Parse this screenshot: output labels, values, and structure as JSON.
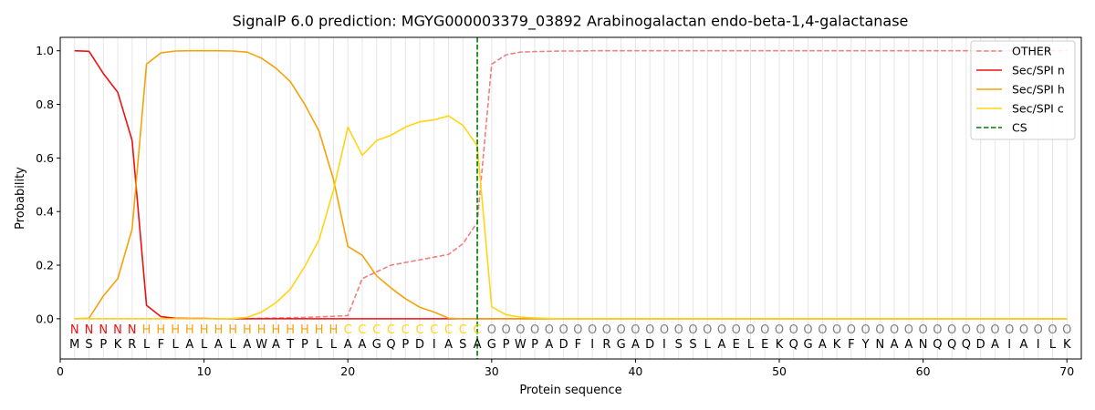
{
  "chart_data": {
    "type": "line",
    "title": "SignalP 6.0 prediction: MGYG000003379_03892 Arabinogalactan endo-beta-1,4-galactanase",
    "xlabel": "Protein sequence",
    "ylabel": "Probability",
    "xlim": [
      0,
      71
    ],
    "ylim": [
      -0.15,
      1.05
    ],
    "xticks": [
      0,
      10,
      20,
      30,
      40,
      50,
      60,
      70
    ],
    "yticks": [
      0.0,
      0.2,
      0.4,
      0.6,
      0.8,
      1.0
    ],
    "ytick_labels": [
      "0.0",
      "0.2",
      "0.4",
      "0.6",
      "0.8",
      "1.0"
    ],
    "grid": "vertical lines at each residue position",
    "legend_position": "top-right",
    "x": [
      1,
      2,
      3,
      4,
      5,
      6,
      7,
      8,
      9,
      10,
      11,
      12,
      13,
      14,
      15,
      16,
      17,
      18,
      19,
      20,
      21,
      22,
      23,
      24,
      25,
      26,
      27,
      28,
      29,
      30,
      31,
      32,
      33,
      34,
      35,
      36,
      37,
      38,
      39,
      40,
      41,
      42,
      43,
      44,
      45,
      46,
      47,
      48,
      49,
      50,
      51,
      52,
      53,
      54,
      55,
      56,
      57,
      58,
      59,
      60,
      61,
      62,
      63,
      64,
      65,
      66,
      67,
      68,
      69,
      70
    ],
    "series": [
      {
        "name": "OTHER",
        "color": "#f08080",
        "dashed": true,
        "values": [
          0,
          0,
          0,
          0,
          0,
          0,
          0,
          0,
          0,
          0,
          0,
          0,
          0,
          0.002,
          0.003,
          0.004,
          0.005,
          0.007,
          0.009,
          0.012,
          0.15,
          0.175,
          0.2,
          0.21,
          0.22,
          0.23,
          0.24,
          0.28,
          0.36,
          0.95,
          0.985,
          0.995,
          0.997,
          0.998,
          0.999,
          0.999,
          1,
          1,
          1,
          1,
          1,
          1,
          1,
          1,
          1,
          1,
          1,
          1,
          1,
          1,
          1,
          1,
          1,
          1,
          1,
          1,
          1,
          1,
          1,
          1,
          1,
          1,
          1,
          1,
          1,
          1,
          1,
          1,
          1,
          1
        ]
      },
      {
        "name": "Sec/SPI n",
        "color": "#ee1111",
        "dashed": false,
        "values": [
          1.0,
          0.998,
          0.915,
          0.845,
          0.665,
          0.05,
          0.008,
          0.002,
          0.001,
          0.001,
          0,
          0,
          0,
          0,
          0,
          0,
          0,
          0,
          0,
          0,
          0,
          0,
          0,
          0,
          0,
          0,
          0,
          0,
          0,
          0,
          0,
          0,
          0,
          0,
          0,
          0,
          0,
          0,
          0,
          0,
          0,
          0,
          0,
          0,
          0,
          0,
          0,
          0,
          0,
          0,
          0,
          0,
          0,
          0,
          0,
          0,
          0,
          0,
          0,
          0,
          0,
          0,
          0,
          0,
          0,
          0,
          0,
          0,
          0,
          0
        ]
      },
      {
        "name": "Sec/SPI h",
        "color": "#f5a20a",
        "dashed": false,
        "values": [
          0,
          0.002,
          0.085,
          0.15,
          0.335,
          0.95,
          0.992,
          0.999,
          1.0,
          1.0,
          1.0,
          0.999,
          0.995,
          0.972,
          0.935,
          0.885,
          0.8,
          0.7,
          0.52,
          0.27,
          0.237,
          0.16,
          0.115,
          0.075,
          0.043,
          0.025,
          0.002,
          0,
          0,
          0,
          0,
          0,
          0,
          0,
          0,
          0,
          0,
          0,
          0,
          0,
          0,
          0,
          0,
          0,
          0,
          0,
          0,
          0,
          0,
          0,
          0,
          0,
          0,
          0,
          0,
          0,
          0,
          0,
          0,
          0,
          0,
          0,
          0,
          0,
          0,
          0,
          0,
          0,
          0,
          0
        ]
      },
      {
        "name": "Sec/SPI c",
        "color": "#ffd514",
        "dashed": false,
        "values": [
          0,
          0,
          0,
          0,
          0,
          0,
          0,
          0,
          0,
          0,
          0,
          0.001,
          0.005,
          0.025,
          0.06,
          0.11,
          0.195,
          0.295,
          0.48,
          0.715,
          0.61,
          0.665,
          0.685,
          0.715,
          0.735,
          0.742,
          0.757,
          0.722,
          0.645,
          0.045,
          0.015,
          0.006,
          0.003,
          0.001,
          0,
          0,
          0,
          0,
          0,
          0,
          0,
          0,
          0,
          0,
          0,
          0,
          0,
          0,
          0,
          0,
          0,
          0,
          0,
          0,
          0,
          0,
          0,
          0,
          0,
          0,
          0,
          0,
          0,
          0,
          0,
          0,
          0,
          0,
          0,
          0
        ]
      }
    ],
    "cs": {
      "name": "CS",
      "x": 29,
      "color": "#007a00"
    },
    "label_track": {
      "labels": [
        "N",
        "N",
        "N",
        "N",
        "N",
        "H",
        "H",
        "H",
        "H",
        "H",
        "H",
        "H",
        "H",
        "H",
        "H",
        "H",
        "H",
        "H",
        "H",
        "C",
        "C",
        "C",
        "C",
        "C",
        "C",
        "C",
        "C",
        "C",
        "C",
        "O",
        "O",
        "O",
        "O",
        "O",
        "O",
        "O",
        "O",
        "O",
        "O",
        "O",
        "O",
        "O",
        "O",
        "O",
        "O",
        "O",
        "O",
        "O",
        "O",
        "O",
        "O",
        "O",
        "O",
        "O",
        "O",
        "O",
        "O",
        "O",
        "O",
        "O",
        "O",
        "O",
        "O",
        "O",
        "O",
        "O",
        "O",
        "O",
        "O",
        "O"
      ],
      "colors": {
        "N": "#ee1111",
        "H": "#f5a20a",
        "C": "#ffd514",
        "O": "#808080"
      }
    },
    "sequence": [
      "M",
      "S",
      "P",
      "K",
      "R",
      "L",
      "F",
      "L",
      "A",
      "L",
      "A",
      "L",
      "A",
      "W",
      "A",
      "T",
      "P",
      "L",
      "L",
      "A",
      "A",
      "G",
      "Q",
      "P",
      "D",
      "I",
      "A",
      "S",
      "A",
      "G",
      "P",
      "W",
      "P",
      "A",
      "D",
      "F",
      "I",
      "R",
      "G",
      "A",
      "D",
      "I",
      "S",
      "S",
      "L",
      "A",
      "E",
      "L",
      "E",
      "K",
      "Q",
      "G",
      "A",
      "K",
      "F",
      "Y",
      "N",
      "A",
      "A",
      "N",
      "Q",
      "Q",
      "Q",
      "D",
      "A",
      "I",
      "A",
      "I",
      "L",
      "K"
    ]
  }
}
